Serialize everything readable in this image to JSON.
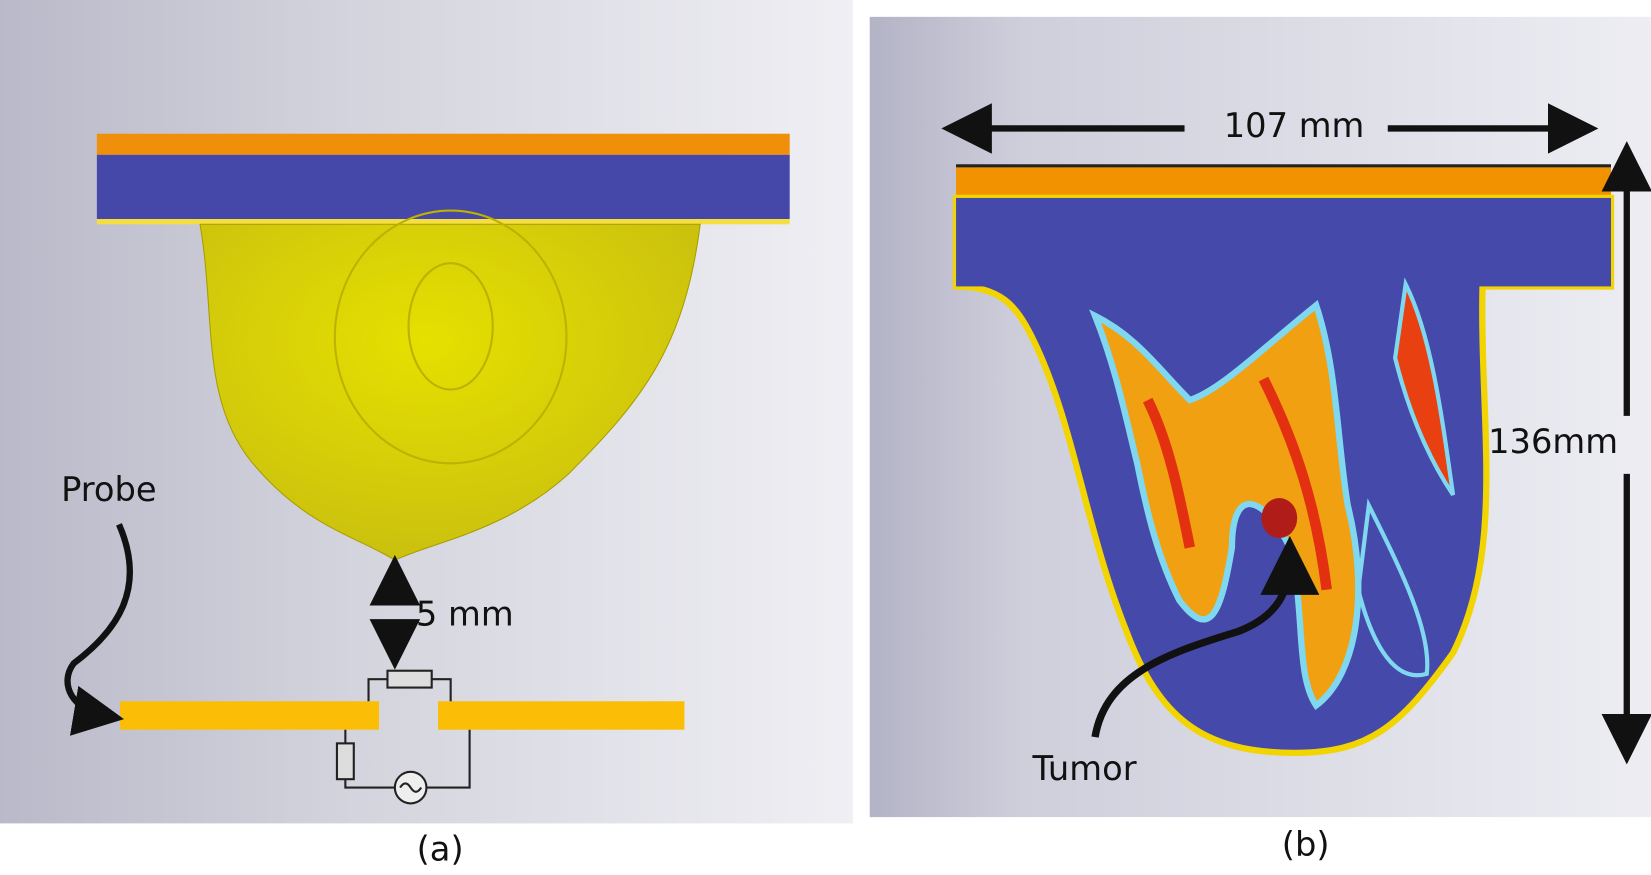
{
  "panels": [
    {
      "label": "(a)",
      "annotations": {
        "probe": "Probe",
        "gap": "5 mm"
      }
    },
    {
      "label": "(b)",
      "annotations": {
        "width": "107 mm",
        "height": "136mm",
        "tumor": "Tumor"
      }
    }
  ]
}
